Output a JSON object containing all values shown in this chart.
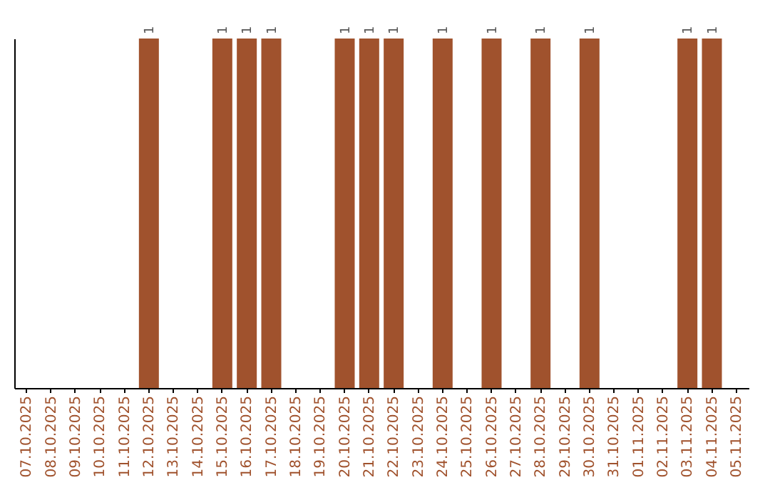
{
  "chart_data": {
    "type": "bar",
    "categories": [
      "07.10.2025",
      "08.10.2025",
      "09.10.2025",
      "10.10.2025",
      "11.10.2025",
      "12.10.2025",
      "13.10.2025",
      "14.10.2025",
      "15.10.2025",
      "16.10.2025",
      "17.10.2025",
      "18.10.2025",
      "19.10.2025",
      "20.10.2025",
      "21.10.2025",
      "22.10.2025",
      "23.10.2025",
      "24.10.2025",
      "25.10.2025",
      "26.10.2025",
      "27.10.2025",
      "28.10.2025",
      "29.10.2025",
      "30.10.2025",
      "31.10.2025",
      "01.11.2025",
      "02.11.2025",
      "03.11.2025",
      "04.11.2025",
      "05.11.2025"
    ],
    "values": [
      0,
      0,
      0,
      0,
      0,
      1,
      0,
      0,
      1,
      1,
      1,
      0,
      0,
      1,
      1,
      1,
      0,
      1,
      0,
      1,
      0,
      1,
      0,
      1,
      0,
      0,
      0,
      1,
      1,
      0
    ],
    "value_labels": [
      null,
      null,
      null,
      null,
      null,
      "1",
      null,
      null,
      "1",
      "1",
      "1",
      null,
      null,
      "1",
      "1",
      "1",
      null,
      "1",
      null,
      "1",
      null,
      "1",
      null,
      "1",
      null,
      null,
      null,
      "1",
      "1",
      null
    ],
    "color": "#a0522d",
    "grid": false,
    "tick_labels": "x"
  }
}
